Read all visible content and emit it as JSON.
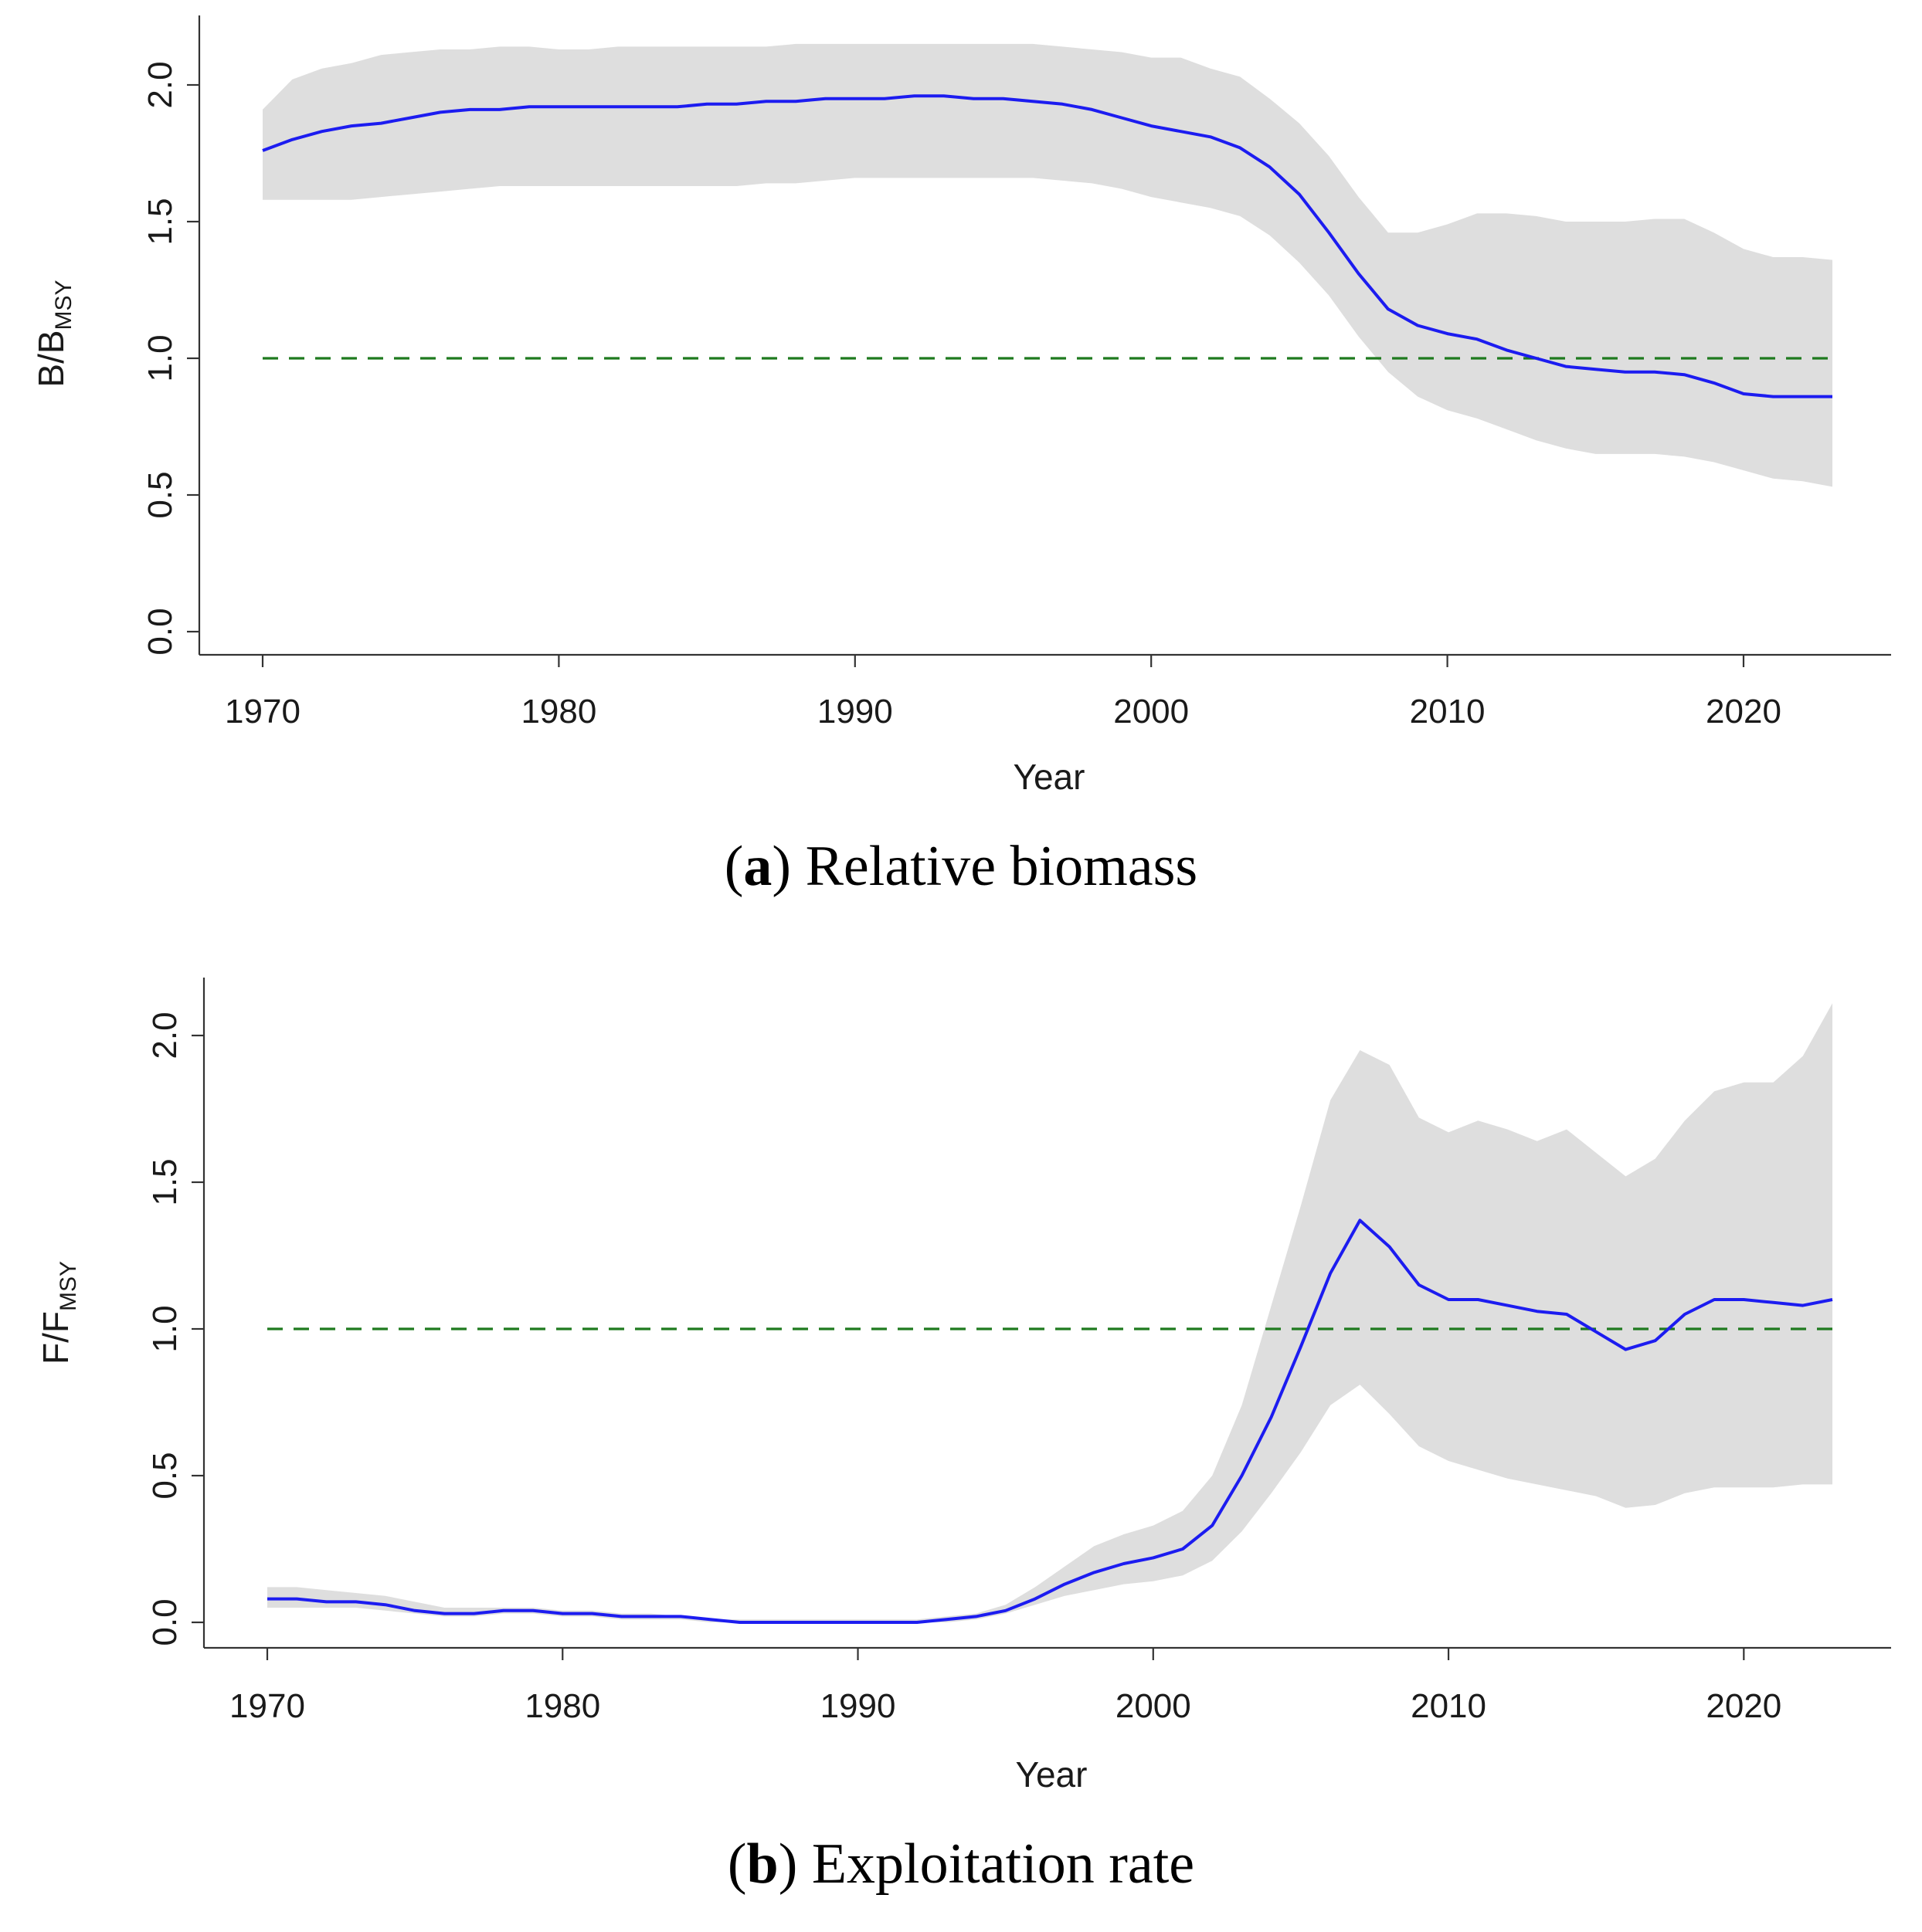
{
  "chart_data": [
    {
      "type": "line",
      "panel": "a",
      "caption_letter": "a",
      "caption_text": "Relative biomass",
      "xlabel": "Year",
      "ylabel_main": "B",
      "ylabel_slash": "/",
      "ylabel_base": "B",
      "ylabel_sub": "MSY",
      "xlim": [
        1968,
        2025.5
      ],
      "ylim": [
        -0.08,
        2.26
      ],
      "xticks": [
        1970,
        1980,
        1990,
        2000,
        2010,
        2020
      ],
      "yticks": [
        0.0,
        0.5,
        1.0,
        1.5,
        2.0
      ],
      "ytick_labels": [
        "0.0",
        "0.5",
        "1.0",
        "1.5",
        "2.0"
      ],
      "reference_line": 1.0,
      "reference_color": "#1f7a1f",
      "line_color": "#1c1cf0",
      "band_color": "#dedede",
      "x": [
        1970,
        1971,
        1972,
        1973,
        1974,
        1975,
        1976,
        1977,
        1978,
        1979,
        1980,
        1981,
        1982,
        1983,
        1984,
        1985,
        1986,
        1987,
        1988,
        1989,
        1990,
        1991,
        1992,
        1993,
        1994,
        1995,
        1996,
        1997,
        1998,
        1999,
        2000,
        2001,
        2002,
        2003,
        2004,
        2005,
        2006,
        2007,
        2008,
        2009,
        2010,
        2011,
        2012,
        2013,
        2014,
        2015,
        2016,
        2017,
        2018,
        2019,
        2020,
        2021,
        2022,
        2023
      ],
      "series": [
        {
          "name": "estimate",
          "values": [
            1.76,
            1.8,
            1.83,
            1.85,
            1.86,
            1.88,
            1.9,
            1.91,
            1.91,
            1.92,
            1.92,
            1.92,
            1.92,
            1.92,
            1.92,
            1.93,
            1.93,
            1.94,
            1.94,
            1.95,
            1.95,
            1.95,
            1.96,
            1.96,
            1.95,
            1.95,
            1.94,
            1.93,
            1.91,
            1.88,
            1.85,
            1.83,
            1.81,
            1.77,
            1.7,
            1.6,
            1.46,
            1.31,
            1.18,
            1.12,
            1.09,
            1.07,
            1.03,
            1.0,
            0.97,
            0.96,
            0.95,
            0.95,
            0.94,
            0.91,
            0.87,
            0.86,
            0.86,
            0.86
          ]
        },
        {
          "name": "upper",
          "values": [
            1.91,
            2.02,
            2.06,
            2.08,
            2.11,
            2.12,
            2.13,
            2.13,
            2.14,
            2.14,
            2.13,
            2.13,
            2.14,
            2.14,
            2.14,
            2.14,
            2.14,
            2.14,
            2.15,
            2.15,
            2.15,
            2.15,
            2.15,
            2.15,
            2.15,
            2.15,
            2.15,
            2.14,
            2.13,
            2.12,
            2.1,
            2.1,
            2.06,
            2.03,
            1.95,
            1.86,
            1.74,
            1.59,
            1.46,
            1.46,
            1.49,
            1.53,
            1.53,
            1.52,
            1.5,
            1.5,
            1.5,
            1.51,
            1.51,
            1.46,
            1.4,
            1.37,
            1.37,
            1.36
          ]
        },
        {
          "name": "lower",
          "values": [
            1.58,
            1.58,
            1.58,
            1.58,
            1.59,
            1.6,
            1.61,
            1.62,
            1.63,
            1.63,
            1.63,
            1.63,
            1.63,
            1.63,
            1.63,
            1.63,
            1.63,
            1.64,
            1.64,
            1.65,
            1.66,
            1.66,
            1.66,
            1.66,
            1.66,
            1.66,
            1.66,
            1.65,
            1.64,
            1.62,
            1.59,
            1.57,
            1.55,
            1.52,
            1.45,
            1.35,
            1.23,
            1.08,
            0.95,
            0.86,
            0.81,
            0.78,
            0.74,
            0.7,
            0.67,
            0.65,
            0.65,
            0.65,
            0.64,
            0.62,
            0.59,
            0.56,
            0.55,
            0.53
          ]
        }
      ]
    },
    {
      "type": "line",
      "panel": "b",
      "caption_letter": "b",
      "caption_text": "Exploitation rate",
      "xlabel": "Year",
      "ylabel_main": "F",
      "ylabel_slash": "/",
      "ylabel_base": "F",
      "ylabel_sub": "MSY",
      "xlim": [
        1968,
        2025.5
      ],
      "ylim": [
        -0.08,
        2.26
      ],
      "xticks": [
        1970,
        1980,
        1990,
        2000,
        2010,
        2020
      ],
      "yticks": [
        0.0,
        0.5,
        1.0,
        1.5,
        2.0
      ],
      "ytick_labels": [
        "0.0",
        "0.5",
        "1.0",
        "1.5",
        "2.0"
      ],
      "reference_line": 1.0,
      "reference_color": "#1f7a1f",
      "line_color": "#1c1cf0",
      "band_color": "#dedede",
      "x": [
        1970,
        1971,
        1972,
        1973,
        1974,
        1975,
        1976,
        1977,
        1978,
        1979,
        1980,
        1981,
        1982,
        1983,
        1984,
        1985,
        1986,
        1987,
        1988,
        1989,
        1990,
        1991,
        1992,
        1993,
        1994,
        1995,
        1996,
        1997,
        1998,
        1999,
        2000,
        2001,
        2002,
        2003,
        2004,
        2005,
        2006,
        2007,
        2008,
        2009,
        2010,
        2011,
        2012,
        2013,
        2014,
        2015,
        2016,
        2017,
        2018,
        2019,
        2020,
        2021,
        2022,
        2023
      ],
      "series": [
        {
          "name": "estimate",
          "values": [
            0.08,
            0.08,
            0.07,
            0.07,
            0.06,
            0.04,
            0.03,
            0.03,
            0.04,
            0.04,
            0.03,
            0.03,
            0.02,
            0.02,
            0.02,
            0.01,
            0.0,
            0.0,
            0.0,
            0.0,
            0.0,
            0.0,
            0.0,
            0.01,
            0.02,
            0.04,
            0.08,
            0.13,
            0.17,
            0.2,
            0.22,
            0.25,
            0.33,
            0.5,
            0.7,
            0.94,
            1.19,
            1.37,
            1.28,
            1.15,
            1.1,
            1.1,
            1.08,
            1.06,
            1.05,
            0.99,
            0.93,
            0.96,
            1.05,
            1.1,
            1.1,
            1.09,
            1.08,
            1.1
          ]
        },
        {
          "name": "upper",
          "values": [
            0.12,
            0.12,
            0.11,
            0.1,
            0.09,
            0.07,
            0.05,
            0.05,
            0.05,
            0.05,
            0.04,
            0.04,
            0.03,
            0.03,
            0.02,
            0.01,
            0.01,
            0.01,
            0.01,
            0.01,
            0.01,
            0.01,
            0.01,
            0.02,
            0.03,
            0.06,
            0.12,
            0.19,
            0.26,
            0.3,
            0.33,
            0.38,
            0.5,
            0.74,
            1.08,
            1.42,
            1.78,
            1.95,
            1.9,
            1.72,
            1.67,
            1.71,
            1.68,
            1.64,
            1.68,
            1.6,
            1.52,
            1.58,
            1.71,
            1.81,
            1.84,
            1.84,
            1.93,
            2.11
          ]
        },
        {
          "name": "lower",
          "values": [
            0.05,
            0.05,
            0.05,
            0.05,
            0.04,
            0.03,
            0.02,
            0.02,
            0.03,
            0.03,
            0.02,
            0.02,
            0.01,
            0.01,
            0.01,
            0.0,
            0.0,
            0.0,
            0.0,
            0.0,
            0.0,
            0.0,
            0.0,
            0.0,
            0.01,
            0.03,
            0.06,
            0.09,
            0.11,
            0.13,
            0.14,
            0.16,
            0.21,
            0.31,
            0.44,
            0.58,
            0.74,
            0.81,
            0.71,
            0.6,
            0.55,
            0.52,
            0.49,
            0.47,
            0.45,
            0.43,
            0.39,
            0.4,
            0.44,
            0.46,
            0.46,
            0.46,
            0.47,
            0.47
          ]
        }
      ]
    }
  ]
}
